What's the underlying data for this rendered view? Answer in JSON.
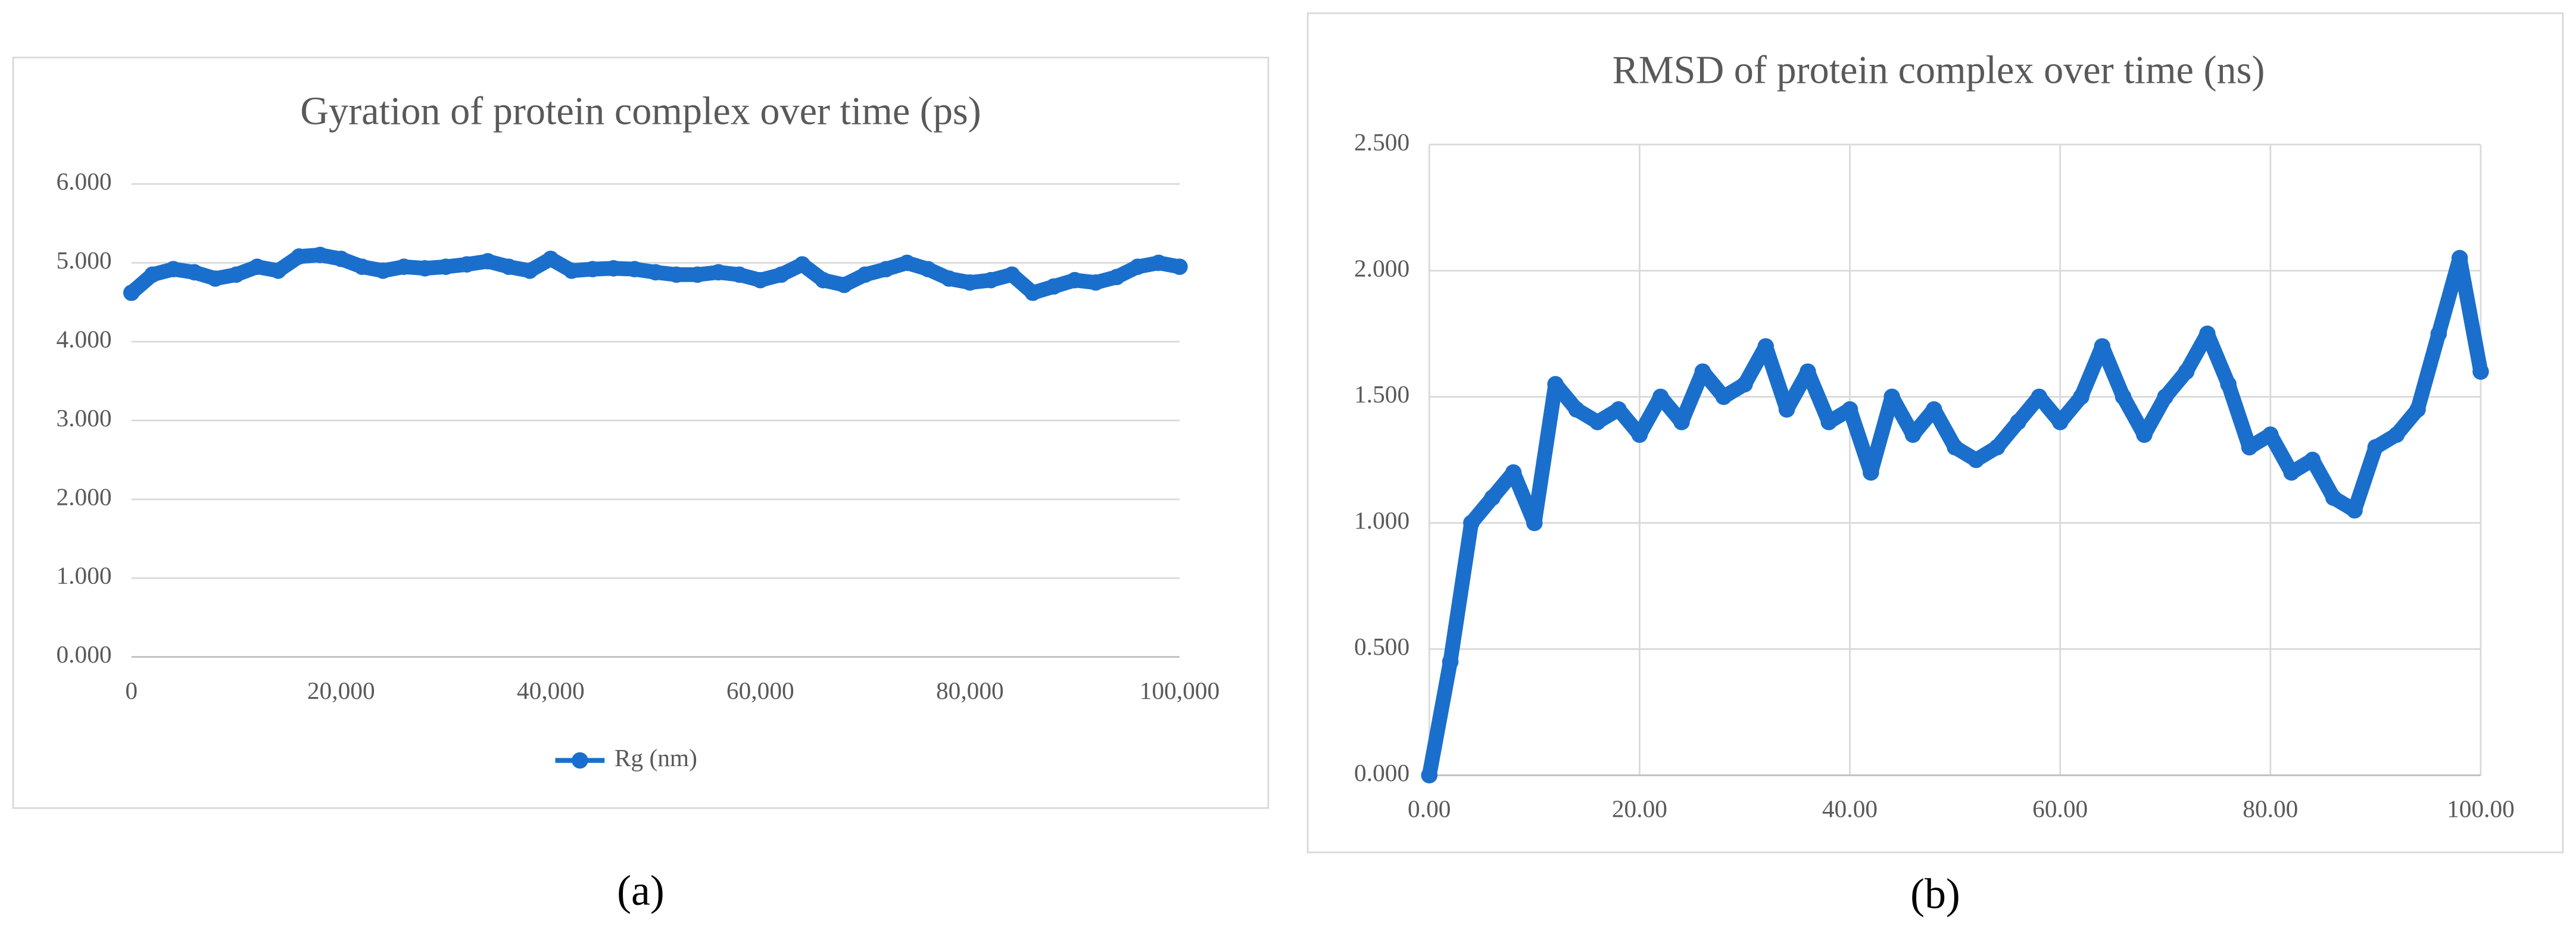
{
  "chart_data": [
    {
      "type": "line",
      "title": "Gyration of protein complex over time (ps)",
      "caption": "(a)",
      "x": [
        0,
        2000,
        4000,
        6000,
        8000,
        10000,
        12000,
        14000,
        16000,
        18000,
        20000,
        22000,
        24000,
        26000,
        28000,
        30000,
        32000,
        34000,
        36000,
        38000,
        40000,
        42000,
        44000,
        46000,
        48000,
        50000,
        52000,
        54000,
        56000,
        58000,
        60000,
        62000,
        64000,
        66000,
        68000,
        70000,
        72000,
        74000,
        76000,
        78000,
        80000,
        82000,
        84000,
        86000,
        88000,
        90000,
        92000,
        94000,
        96000,
        98000,
        100000
      ],
      "series": [
        {
          "name": "Rg (nm)",
          "color": "#1b6fcc",
          "values": [
            4.62,
            4.85,
            4.92,
            4.88,
            4.8,
            4.85,
            4.95,
            4.9,
            5.08,
            5.1,
            5.05,
            4.95,
            4.9,
            4.95,
            4.93,
            4.95,
            4.98,
            5.02,
            4.95,
            4.9,
            5.05,
            4.9,
            4.92,
            4.93,
            4.92,
            4.88,
            4.85,
            4.85,
            4.88,
            4.85,
            4.78,
            4.85,
            4.98,
            4.78,
            4.72,
            4.85,
            4.92,
            5.0,
            4.92,
            4.8,
            4.75,
            4.78,
            4.85,
            4.62,
            4.7,
            4.78,
            4.75,
            4.82,
            4.95,
            5.0,
            4.95
          ]
        }
      ],
      "xlim": [
        0,
        100000
      ],
      "xticks": [
        0,
        {
          "value": 20000,
          "label": "20,000"
        },
        {
          "value": 40000,
          "label": "40,000"
        },
        {
          "value": 60000,
          "label": "60,000"
        },
        {
          "value": 80000,
          "label": "80,000"
        },
        {
          "value": 100000,
          "label": "100,000"
        }
      ],
      "ylim": [
        0,
        6
      ],
      "yticks": [
        {
          "value": 0,
          "label": "0.000"
        },
        {
          "value": 1,
          "label": "1.000"
        },
        {
          "value": 2,
          "label": "2.000"
        },
        {
          "value": 3,
          "label": "3.000"
        },
        {
          "value": 4,
          "label": "4.000"
        },
        {
          "value": 5,
          "label": "5.000"
        },
        {
          "value": 6,
          "label": "6.000"
        }
      ],
      "grid": "y",
      "legend": "bottom"
    },
    {
      "type": "line",
      "title": "RMSD of protein complex over time (ns)",
      "caption": "(b)",
      "x": [
        0,
        2,
        4,
        6,
        8,
        10,
        12,
        14,
        16,
        18,
        20,
        22,
        24,
        26,
        28,
        30,
        32,
        34,
        36,
        38,
        40,
        42,
        44,
        46,
        48,
        50,
        52,
        54,
        56,
        58,
        60,
        62,
        64,
        66,
        68,
        70,
        72,
        74,
        76,
        78,
        80,
        82,
        84,
        86,
        88,
        90,
        92,
        94,
        96,
        98,
        100
      ],
      "series": [
        {
          "color": "#1b6fcc",
          "values": [
            0.0,
            0.45,
            1.0,
            1.1,
            1.2,
            1.0,
            1.55,
            1.45,
            1.4,
            1.45,
            1.35,
            1.5,
            1.4,
            1.6,
            1.5,
            1.55,
            1.7,
            1.45,
            1.6,
            1.4,
            1.45,
            1.2,
            1.5,
            1.35,
            1.45,
            1.3,
            1.25,
            1.3,
            1.4,
            1.5,
            1.4,
            1.5,
            1.7,
            1.5,
            1.35,
            1.5,
            1.6,
            1.75,
            1.55,
            1.3,
            1.35,
            1.2,
            1.25,
            1.1,
            1.05,
            1.3,
            1.35,
            1.45,
            1.75,
            2.05,
            1.6
          ]
        }
      ],
      "xlim": [
        0,
        100
      ],
      "xticks": [
        {
          "value": 0,
          "label": "0.00"
        },
        {
          "value": 20,
          "label": "20.00"
        },
        {
          "value": 40,
          "label": "40.00"
        },
        {
          "value": 60,
          "label": "60.00"
        },
        {
          "value": 80,
          "label": "80.00"
        },
        {
          "value": 100,
          "label": "100.00"
        }
      ],
      "ylim": [
        0,
        2.5
      ],
      "yticks": [
        {
          "value": 0,
          "label": "0.000"
        },
        {
          "value": 0.5,
          "label": "0.500"
        },
        {
          "value": 1,
          "label": "1.000"
        },
        {
          "value": 1.5,
          "label": "1.500"
        },
        {
          "value": 2,
          "label": "2.000"
        },
        {
          "value": 2.5,
          "label": "2.500"
        }
      ],
      "grid": "both"
    }
  ]
}
